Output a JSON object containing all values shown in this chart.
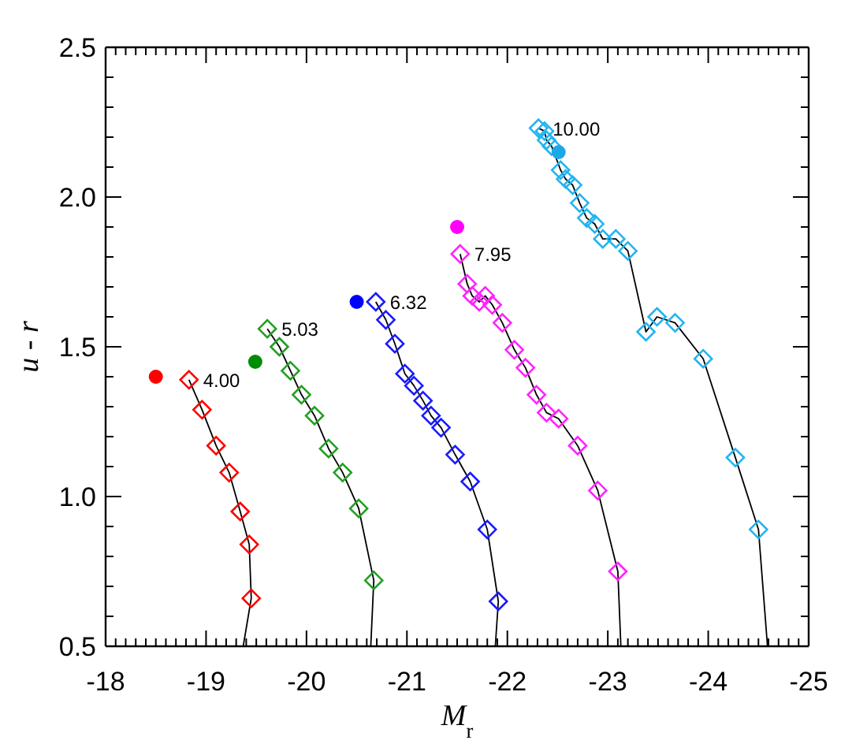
{
  "chart_data": {
    "type": "scatter",
    "xlabel": "M$_{r}$",
    "ylabel": "u - r",
    "xlim": [
      -18,
      -25
    ],
    "ylim": [
      0.5,
      2.5
    ],
    "xticks": [
      -18,
      {
        "value": -18.1,
        "label": null
      },
      {
        "value": -18.2,
        "label": null
      },
      {
        "value": -18.3,
        "label": null
      },
      {
        "value": -18.4,
        "label": null
      },
      {
        "value": -18.5,
        "label": null
      },
      {
        "value": -18.6,
        "label": null
      },
      {
        "value": -18.7,
        "label": null
      },
      {
        "value": -18.8,
        "label": null
      },
      {
        "value": -18.9,
        "label": null
      },
      -19,
      {
        "value": -19.1,
        "label": null
      },
      {
        "value": -19.2,
        "label": null
      },
      {
        "value": -19.3,
        "label": null
      },
      {
        "value": -19.4,
        "label": null
      },
      {
        "value": -19.5,
        "label": null
      },
      {
        "value": -19.6,
        "label": null
      },
      {
        "value": -19.7,
        "label": null
      },
      {
        "value": -19.8,
        "label": null
      },
      {
        "value": -19.9,
        "label": null
      },
      -20,
      {
        "value": -20.1,
        "label": null
      },
      {
        "value": -20.2,
        "label": null
      },
      {
        "value": -20.3,
        "label": null
      },
      {
        "value": -20.4,
        "label": null
      },
      {
        "value": -20.5,
        "label": null
      },
      {
        "value": -20.6,
        "label": null
      },
      {
        "value": -20.7,
        "label": null
      },
      {
        "value": -20.8,
        "label": null
      },
      {
        "value": -20.9,
        "label": null
      },
      -21,
      {
        "value": -21.1,
        "label": null
      },
      {
        "value": -21.2,
        "label": null
      },
      {
        "value": -21.3,
        "label": null
      },
      {
        "value": -21.4,
        "label": null
      },
      {
        "value": -21.5,
        "label": null
      },
      {
        "value": -21.6,
        "label": null
      },
      {
        "value": -21.7,
        "label": null
      },
      {
        "value": -21.8,
        "label": null
      },
      {
        "value": -21.9,
        "label": null
      },
      -22,
      {
        "value": -22.1,
        "label": null
      },
      {
        "value": -22.2,
        "label": null
      },
      {
        "value": -22.3,
        "label": null
      },
      {
        "value": -22.4,
        "label": null
      },
      {
        "value": -22.5,
        "label": null
      },
      {
        "value": -22.6,
        "label": null
      },
      {
        "value": -22.7,
        "label": null
      },
      {
        "value": -22.8,
        "label": null
      },
      {
        "value": -22.9,
        "label": null
      },
      -23,
      {
        "value": -23.1,
        "label": null
      },
      {
        "value": -23.2,
        "label": null
      },
      {
        "value": -23.3,
        "label": null
      },
      {
        "value": -23.4,
        "label": null
      },
      {
        "value": -23.5,
        "label": null
      },
      {
        "value": -23.6,
        "label": null
      },
      {
        "value": -23.7,
        "label": null
      },
      {
        "value": -23.8,
        "label": null
      },
      {
        "value": -23.9,
        "label": null
      },
      -24,
      {
        "value": -24.1,
        "label": null
      },
      {
        "value": -24.2,
        "label": null
      },
      {
        "value": -24.3,
        "label": null
      },
      {
        "value": -24.4,
        "label": null
      },
      {
        "value": -24.5,
        "label": null
      },
      {
        "value": -24.6,
        "label": null
      },
      {
        "value": -24.7,
        "label": null
      },
      {
        "value": -24.8,
        "label": null
      },
      {
        "value": -24.9,
        "label": null
      },
      -25
    ],
    "yticks": [
      0.5,
      {
        "value": 0.6,
        "label": null
      },
      {
        "value": 0.7,
        "label": null
      },
      {
        "value": 0.8,
        "label": null
      },
      {
        "value": 0.9,
        "label": null
      },
      {
        "value": 1,
        "label": "1.0"
      },
      {
        "value": 1.1,
        "label": null
      },
      {
        "value": 1.2,
        "label": null
      },
      {
        "value": 1.3,
        "label": null
      },
      {
        "value": 1.4,
        "label": null
      },
      1.5,
      {
        "value": 1.6,
        "label": null
      },
      {
        "value": 1.7,
        "label": null
      },
      {
        "value": 1.8,
        "label": null
      },
      {
        "value": 1.9,
        "label": null
      },
      {
        "value": 2,
        "label": "2.0"
      },
      {
        "value": 2.1,
        "label": null
      },
      {
        "value": 2.2,
        "label": null
      },
      {
        "value": 2.3,
        "label": null
      },
      {
        "value": 2.4,
        "label": null
      },
      2.5
    ],
    "annotations": [
      {
        "text": "4.00",
        "x": -18.83,
        "y": 1.39
      },
      {
        "text": "5.03",
        "x": -19.61,
        "y": 1.56
      },
      {
        "text": "6.32",
        "x": -20.69,
        "y": 1.65
      },
      {
        "text": "7.95",
        "x": -21.53,
        "y": 1.81
      },
      {
        "text": "10.00",
        "x": -22.31,
        "y": 2.23
      }
    ],
    "series": [
      {
        "type": "line",
        "color": "#000000",
        "marker": "none",
        "line_style": "solid",
        "x": [
          -18.83,
          -18.96,
          -19.1,
          -19.23,
          -19.34,
          -19.43,
          -19.45,
          -19.37
        ],
        "values": [
          1.39,
          1.29,
          1.17,
          1.08,
          0.95,
          0.84,
          0.66,
          0.5
        ]
      },
      {
        "type": "line",
        "color": "#000000",
        "marker": "none",
        "line_style": "solid",
        "x": [
          -19.61,
          -19.73,
          -19.84,
          -19.95,
          -20.08,
          -20.22,
          -20.36,
          -20.52,
          -20.67,
          -20.64
        ],
        "values": [
          1.56,
          1.5,
          1.42,
          1.34,
          1.27,
          1.16,
          1.08,
          0.96,
          0.72,
          0.5
        ]
      },
      {
        "type": "line",
        "color": "#000000",
        "marker": "none",
        "line_style": "solid",
        "x": [
          -20.69,
          -20.79,
          -20.88,
          -20.98,
          -21.07,
          -21.16,
          -21.24,
          -21.34,
          -21.48,
          -21.63,
          -21.8,
          -21.91,
          -21.88
        ],
        "values": [
          1.65,
          1.59,
          1.51,
          1.41,
          1.37,
          1.32,
          1.27,
          1.23,
          1.14,
          1.05,
          0.89,
          0.65,
          0.5
        ]
      },
      {
        "type": "line",
        "color": "#000000",
        "marker": "none",
        "line_style": "solid",
        "x": [
          -21.53,
          -21.6,
          -21.65,
          -21.72,
          -21.78,
          -21.85,
          -21.95,
          -22.07,
          -22.18,
          -22.29,
          -22.39,
          -22.51,
          -22.7,
          -22.9,
          -23.1,
          -23.13
        ],
        "values": [
          1.81,
          1.71,
          1.67,
          1.65,
          1.67,
          1.64,
          1.58,
          1.49,
          1.43,
          1.34,
          1.28,
          1.26,
          1.17,
          1.02,
          0.75,
          0.5
        ]
      },
      {
        "type": "line",
        "color": "#000000",
        "marker": "none",
        "line_style": "solid",
        "x": [
          -22.31,
          -22.37,
          -22.39,
          -22.44,
          -22.53,
          -22.58,
          -22.65,
          -22.72,
          -22.79,
          -22.87,
          -22.95,
          -23.08,
          -23.2,
          -23.38,
          -23.49,
          -23.67,
          -23.95,
          -24.27,
          -24.5,
          -24.59
        ],
        "values": [
          2.23,
          2.22,
          2.19,
          2.17,
          2.09,
          2.06,
          2.04,
          1.98,
          1.93,
          1.91,
          1.86,
          1.86,
          1.82,
          1.55,
          1.6,
          1.58,
          1.46,
          1.13,
          0.89,
          0.5
        ]
      },
      {
        "type": "scatter",
        "color": "#ff0000",
        "marker": "diamond",
        "x": [
          -18.83,
          -18.96,
          -19.1,
          -19.23,
          -19.34,
          -19.43,
          -19.45
        ],
        "values": [
          1.39,
          1.29,
          1.17,
          1.08,
          0.95,
          0.84,
          0.66
        ]
      },
      {
        "type": "scatter",
        "color": "#22a022",
        "marker": "diamond",
        "x": [
          -19.61,
          -19.73,
          -19.84,
          -19.95,
          -20.08,
          -20.22,
          -20.36,
          -20.52,
          -20.67
        ],
        "values": [
          1.56,
          1.5,
          1.42,
          1.34,
          1.27,
          1.16,
          1.08,
          0.96,
          0.72
        ]
      },
      {
        "type": "scatter",
        "color": "#1a1aff",
        "marker": "diamond",
        "x": [
          -20.69,
          -20.79,
          -20.88,
          -20.98,
          -21.07,
          -21.16,
          -21.24,
          -21.34,
          -21.48,
          -21.63,
          -21.8,
          -21.91
        ],
        "values": [
          1.65,
          1.59,
          1.51,
          1.41,
          1.37,
          1.32,
          1.27,
          1.23,
          1.14,
          1.05,
          0.89,
          0.65
        ]
      },
      {
        "type": "scatter",
        "color": "#ff22ff",
        "marker": "diamond",
        "x": [
          -21.53,
          -21.6,
          -21.65,
          -21.72,
          -21.78,
          -21.85,
          -21.95,
          -22.07,
          -22.18,
          -22.29,
          -22.39,
          -22.51,
          -22.7,
          -22.9,
          -23.1
        ],
        "values": [
          1.81,
          1.71,
          1.67,
          1.65,
          1.67,
          1.64,
          1.58,
          1.49,
          1.43,
          1.34,
          1.28,
          1.26,
          1.17,
          1.02,
          0.75
        ]
      },
      {
        "type": "scatter",
        "color": "#22b4f0",
        "marker": "diamond",
        "x": [
          -22.31,
          -22.37,
          -22.39,
          -22.44,
          -22.53,
          -22.58,
          -22.65,
          -22.72,
          -22.79,
          -22.87,
          -22.95,
          -23.08,
          -23.2,
          -23.38,
          -23.49,
          -23.67,
          -23.95,
          -24.27,
          -24.5
        ],
        "values": [
          2.23,
          2.22,
          2.19,
          2.17,
          2.09,
          2.06,
          2.04,
          1.98,
          1.93,
          1.91,
          1.86,
          1.86,
          1.82,
          1.55,
          1.6,
          1.58,
          1.46,
          1.13,
          0.89
        ]
      },
      {
        "type": "scatter",
        "color": "#ff0000",
        "marker": "circle",
        "x": [
          -18.5
        ],
        "values": [
          1.4
        ]
      },
      {
        "type": "scatter",
        "color": "#008c00",
        "marker": "circle",
        "x": [
          -19.49
        ],
        "values": [
          1.45
        ]
      },
      {
        "type": "scatter",
        "color": "#0000ff",
        "marker": "circle",
        "x": [
          -20.5
        ],
        "values": [
          1.65
        ]
      },
      {
        "type": "scatter",
        "color": "#ff00ff",
        "marker": "circle",
        "x": [
          -21.5
        ],
        "values": [
          1.9
        ]
      },
      {
        "type": "scatter",
        "color": "#1aa8e8",
        "marker": "circle",
        "x": [
          -22.51
        ],
        "values": [
          2.15
        ]
      }
    ]
  }
}
